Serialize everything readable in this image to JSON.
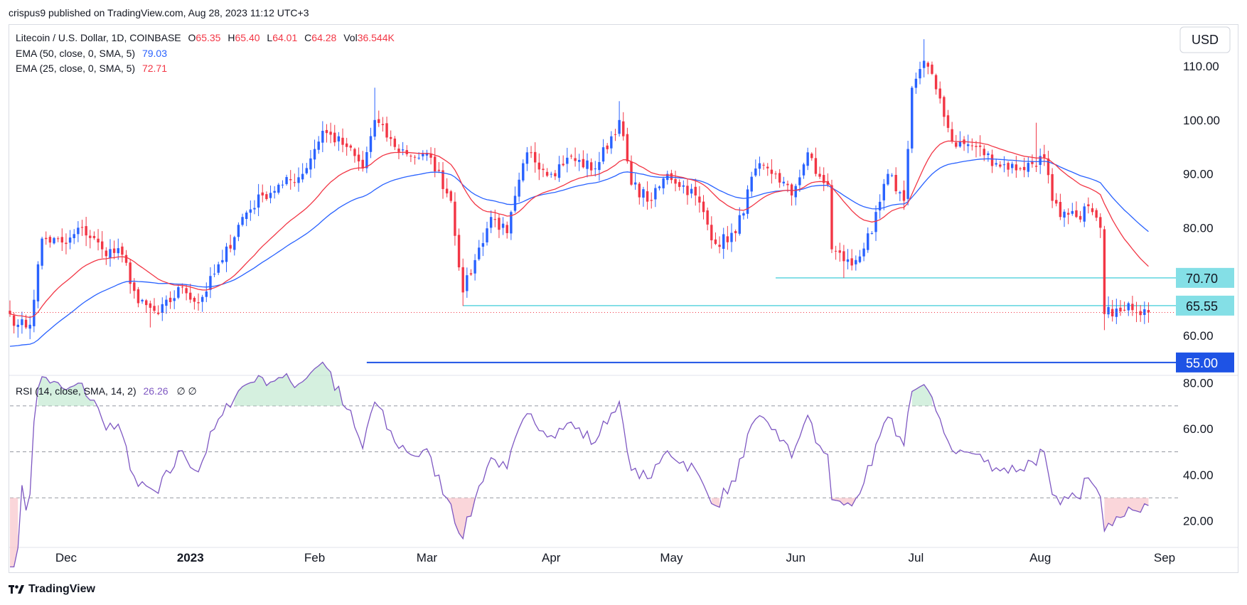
{
  "header": {
    "publisher_line": "crispus9 published on TradingView.com, Aug 28, 2023 11:12 UTC+3"
  },
  "footer": {
    "brand": "TradingView"
  },
  "currency_button": "USD",
  "legend": {
    "symbol": "Litecoin / U.S. Dollar, 1D, COINBASE",
    "o_label": "O",
    "o_value": "65.35",
    "h_label": "H",
    "h_value": "65.40",
    "l_label": "L",
    "l_value": "64.01",
    "c_label": "C",
    "c_value": "64.28",
    "vol_label": "Vol",
    "vol_value": "36.544K",
    "ema50_label": "EMA (50, close, 0, SMA, 5)",
    "ema50_value": "79.03",
    "ema25_label": "EMA (25, close, 0, SMA, 5)",
    "ema25_value": "72.71",
    "rsi_label": "RSI (14, close, SMA, 14, 2)",
    "rsi_value": "26.26",
    "rsi_extra": "∅  ∅"
  },
  "colors": {
    "up": "#2962ff",
    "down": "#f23645",
    "ema50": "#2962ff",
    "ema25": "#f23645",
    "rsi": "#7e57c2",
    "hline_cyan": "#5fd4df",
    "hline_blue": "#1e53e5"
  },
  "chart_data": [
    {
      "type": "candlestick",
      "title": "Litecoin / U.S. Dollar, 1D, COINBASE",
      "price_ticks": [
        "110.00",
        "100.00",
        "90.00",
        "80.00",
        "60.00"
      ],
      "ylim": [
        53,
        117
      ],
      "x_ticks": [
        {
          "label": "Dec",
          "date": "2022-12-01"
        },
        {
          "label": "2023",
          "date": "2023-01-01"
        },
        {
          "label": "Feb",
          "date": "2023-02-01"
        },
        {
          "label": "Mar",
          "date": "2023-03-01"
        },
        {
          "label": "Apr",
          "date": "2023-04-01"
        },
        {
          "label": "May",
          "date": "2023-05-01"
        },
        {
          "label": "Jun",
          "date": "2023-06-01"
        },
        {
          "label": "Jul",
          "date": "2023-07-01"
        },
        {
          "label": "Aug",
          "date": "2023-08-01"
        },
        {
          "label": "Sep",
          "date": "2023-09-01"
        }
      ],
      "x_range": [
        "2022-11-17",
        "2023-09-01"
      ],
      "horizontal_levels": [
        {
          "value": 70.7,
          "label": "70.70",
          "start_date": "2023-05-27",
          "style": "cyan"
        },
        {
          "value": 65.55,
          "label": "65.55",
          "start_date": "2023-03-10",
          "style": "cyan"
        },
        {
          "value": 55.0,
          "label": "55.00",
          "start_date": "2023-02-14",
          "style": "blue"
        }
      ],
      "last_price": 64.28,
      "close_anchors": [
        {
          "date": "2022-11-17",
          "close": 64
        },
        {
          "date": "2022-11-19",
          "close": 62
        },
        {
          "date": "2022-11-22",
          "close": 62
        },
        {
          "date": "2022-11-25",
          "close": 78
        },
        {
          "date": "2022-12-01",
          "close": 77
        },
        {
          "date": "2022-12-05",
          "close": 80
        },
        {
          "date": "2022-12-10",
          "close": 76
        },
        {
          "date": "2022-12-15",
          "close": 75
        },
        {
          "date": "2022-12-19",
          "close": 66
        },
        {
          "date": "2022-12-24",
          "close": 64
        },
        {
          "date": "2022-12-30",
          "close": 69
        },
        {
          "date": "2023-01-03",
          "close": 66
        },
        {
          "date": "2023-01-09",
          "close": 74
        },
        {
          "date": "2023-01-14",
          "close": 82
        },
        {
          "date": "2023-01-19",
          "close": 86
        },
        {
          "date": "2023-01-24",
          "close": 88
        },
        {
          "date": "2023-01-29",
          "close": 90
        },
        {
          "date": "2023-02-03",
          "close": 98
        },
        {
          "date": "2023-02-09",
          "close": 95
        },
        {
          "date": "2023-02-13",
          "close": 91
        },
        {
          "date": "2023-02-16",
          "close": 100
        },
        {
          "date": "2023-02-21",
          "close": 95
        },
        {
          "date": "2023-02-27",
          "close": 93
        },
        {
          "date": "2023-03-02",
          "close": 93
        },
        {
          "date": "2023-03-07",
          "close": 85
        },
        {
          "date": "2023-03-10",
          "close": 68
        },
        {
          "date": "2023-03-13",
          "close": 74
        },
        {
          "date": "2023-03-17",
          "close": 82
        },
        {
          "date": "2023-03-21",
          "close": 79
        },
        {
          "date": "2023-03-26",
          "close": 94
        },
        {
          "date": "2023-04-01",
          "close": 90
        },
        {
          "date": "2023-04-05",
          "close": 93
        },
        {
          "date": "2023-04-12",
          "close": 91
        },
        {
          "date": "2023-04-18",
          "close": 100
        },
        {
          "date": "2023-04-21",
          "close": 88
        },
        {
          "date": "2023-04-26",
          "close": 85
        },
        {
          "date": "2023-04-30",
          "close": 90
        },
        {
          "date": "2023-05-07",
          "close": 86
        },
        {
          "date": "2023-05-12",
          "close": 77
        },
        {
          "date": "2023-05-17",
          "close": 79
        },
        {
          "date": "2023-05-22",
          "close": 91
        },
        {
          "date": "2023-05-27",
          "close": 90
        },
        {
          "date": "2023-05-31",
          "close": 86
        },
        {
          "date": "2023-06-04",
          "close": 94
        },
        {
          "date": "2023-06-06",
          "close": 90
        },
        {
          "date": "2023-06-09",
          "close": 88
        },
        {
          "date": "2023-06-10",
          "close": 76
        },
        {
          "date": "2023-06-15",
          "close": 73
        },
        {
          "date": "2023-06-20",
          "close": 79
        },
        {
          "date": "2023-06-24",
          "close": 90
        },
        {
          "date": "2023-06-28",
          "close": 85
        },
        {
          "date": "2023-06-30",
          "close": 106
        },
        {
          "date": "2023-07-03",
          "close": 111
        },
        {
          "date": "2023-07-07",
          "close": 104
        },
        {
          "date": "2023-07-10",
          "close": 96
        },
        {
          "date": "2023-07-16",
          "close": 95
        },
        {
          "date": "2023-07-21",
          "close": 92
        },
        {
          "date": "2023-07-27",
          "close": 91
        },
        {
          "date": "2023-08-02",
          "close": 93
        },
        {
          "date": "2023-08-04",
          "close": 85
        },
        {
          "date": "2023-08-06",
          "close": 82
        },
        {
          "date": "2023-08-10",
          "close": 82
        },
        {
          "date": "2023-08-13",
          "close": 84
        },
        {
          "date": "2023-08-16",
          "close": 80
        },
        {
          "date": "2023-08-17",
          "close": 64
        },
        {
          "date": "2023-08-20",
          "close": 65
        },
        {
          "date": "2023-08-23",
          "close": 66
        },
        {
          "date": "2023-08-28",
          "close": 64.28
        }
      ]
    },
    {
      "type": "line",
      "title": "RSI (14, close, SMA, 14, 2)",
      "y_ticks": [
        "80.00",
        "60.00",
        "40.00",
        "20.00"
      ],
      "ylim": [
        10,
        82
      ],
      "bands": [
        70,
        50,
        30
      ],
      "last_value": 26.26
    }
  ]
}
